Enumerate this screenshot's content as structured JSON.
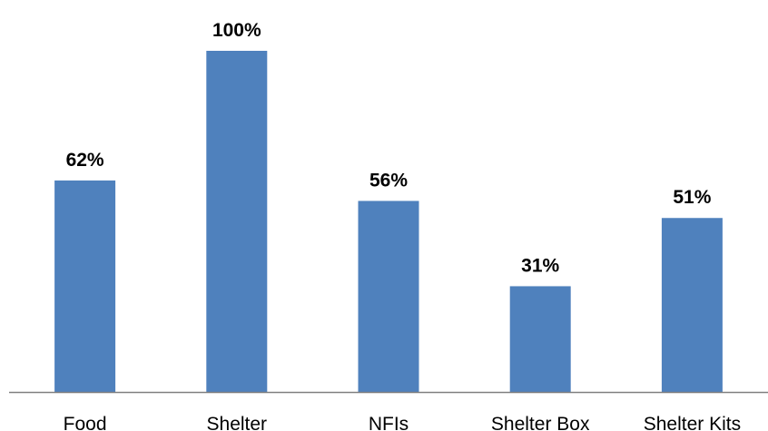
{
  "chart_data": {
    "type": "bar",
    "categories": [
      "Food",
      "Shelter",
      "NFIs",
      "Shelter Box",
      "Shelter Kits"
    ],
    "values": [
      62,
      100,
      56,
      31,
      51
    ],
    "data_labels": [
      "62%",
      "100%",
      "56%",
      "31%",
      "51%"
    ],
    "title": "",
    "xlabel": "",
    "ylabel": "",
    "ylim": [
      0,
      100
    ],
    "grid": false,
    "legend": "none",
    "bar_color": "#4F81BD",
    "axis_color": "#808080"
  }
}
